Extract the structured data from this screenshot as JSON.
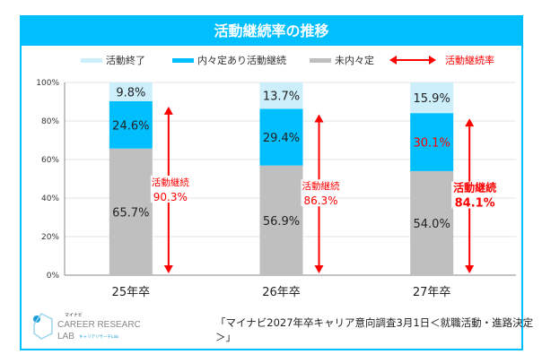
{
  "chart_data": {
    "type": "bar",
    "stacked": true,
    "title": "活動継続率の推移",
    "categories": [
      "25年卒",
      "26年卒",
      "27年卒"
    ],
    "series": [
      {
        "name": "未内々定",
        "color": "#bfbfbf",
        "values": [
          65.7,
          56.9,
          54.0
        ]
      },
      {
        "name": "内々定あり活動継続",
        "color": "#00bfff",
        "values": [
          24.6,
          29.4,
          30.1
        ]
      },
      {
        "name": "活動終了",
        "color": "#cdeffc",
        "values": [
          9.8,
          13.7,
          15.9
        ]
      }
    ],
    "data_labels": [
      [
        "65.7%",
        "24.6%",
        "9.8%"
      ],
      [
        "56.9%",
        "29.4%",
        "13.7%"
      ],
      [
        "54.0%",
        "30.1%",
        "15.9%"
      ]
    ],
    "continuation_rate": {
      "name": "活動継続率",
      "label": "活動継続",
      "color": "#ff0000",
      "values": [
        "90.3%",
        "86.3%",
        "84.1%"
      ]
    },
    "yticks": [
      "0%",
      "20%",
      "40%",
      "60%",
      "80%",
      "100%"
    ],
    "ylim": [
      0,
      100
    ],
    "grid": true,
    "legend": "top"
  },
  "legend": [
    {
      "label": "活動終了",
      "color": "#cdeffc"
    },
    {
      "label": "内々定あり活動継続",
      "color": "#00bfff"
    },
    {
      "label": "未内々定",
      "color": "#bfbfbf"
    },
    {
      "label": "活動継続率",
      "color": "#ff0000"
    }
  ],
  "logo": {
    "text": "マイナビ CAREER RESEARCH LAB キャリアリサーチLab"
  },
  "source": "「マイナビ2027年卒キャリア意向調査3月1日＜就職活動・進路決定＞」"
}
